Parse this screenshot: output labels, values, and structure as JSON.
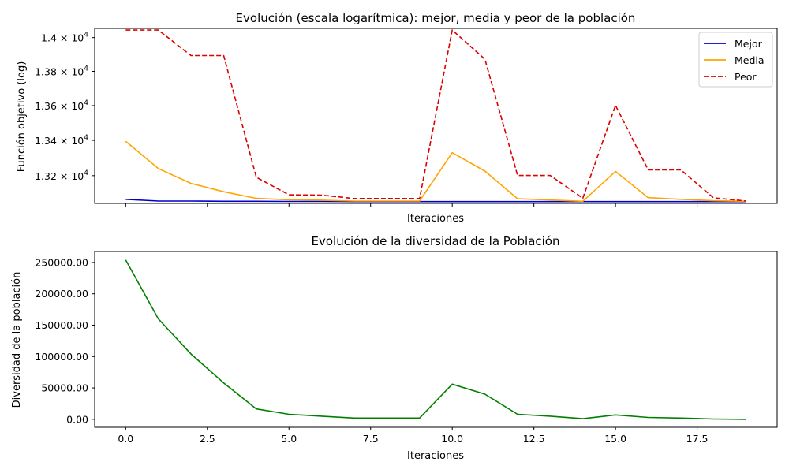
{
  "chart_data": [
    {
      "type": "line",
      "title": "Evolución (escala logarítmica): mejor, media y peor de la población",
      "xlabel": "Iteraciones",
      "ylabel": "Función objetivo (log)",
      "yscale": "log",
      "grid": false,
      "legend": "top-right",
      "xlim": [
        -0.95,
        19.95
      ],
      "ylim": [
        13045,
        14055
      ],
      "yticks": [
        13200,
        13400,
        13600,
        13800,
        14000
      ],
      "ytick_labels": [
        {
          "mantissa": "1.32",
          "exp": "4"
        },
        {
          "mantissa": "1.34",
          "exp": "4"
        },
        {
          "mantissa": "1.36",
          "exp": "4"
        },
        {
          "mantissa": "1.38",
          "exp": "4"
        },
        {
          "mantissa": "1.4",
          "exp": "4"
        }
      ],
      "x": [
        0,
        1,
        2,
        3,
        4,
        5,
        6,
        7,
        8,
        9,
        10,
        11,
        12,
        13,
        14,
        15,
        16,
        17,
        18,
        19
      ],
      "series": [
        {
          "name": "Mejor",
          "color": "#0000cc",
          "dash": "solid",
          "values": [
            13068,
            13058,
            13058,
            13057,
            13057,
            13056,
            13056,
            13055,
            13055,
            13055,
            13055,
            13055,
            13055,
            13055,
            13055,
            13055,
            13055,
            13055,
            13055,
            13055
          ]
        },
        {
          "name": "Media",
          "color": "#ffa500",
          "dash": "solid",
          "values": [
            13395,
            13240,
            13157,
            13110,
            13073,
            13065,
            13063,
            13058,
            13058,
            13058,
            13330,
            13226,
            13071,
            13064,
            13057,
            13224,
            13077,
            13068,
            13060,
            13057
          ]
        },
        {
          "name": "Peor",
          "color": "#dd0000",
          "dash": "dashed",
          "values": [
            14045,
            14045,
            13893,
            13893,
            13191,
            13093,
            13091,
            13072,
            13072,
            13072,
            14045,
            13871,
            13201,
            13201,
            13074,
            13601,
            13233,
            13233,
            13076,
            13058
          ]
        }
      ]
    },
    {
      "type": "line",
      "title": "Evolución de la diversidad de la Población",
      "xlabel": "Iteraciones",
      "ylabel": "Diversidad de la población",
      "grid": false,
      "xlim": [
        -0.95,
        19.95
      ],
      "ylim": [
        -12730,
        267480
      ],
      "xticks": [
        0,
        2.5,
        5,
        7.5,
        10,
        12.5,
        15,
        17.5
      ],
      "xtick_labels": [
        "0.0",
        "2.5",
        "5.0",
        "7.5",
        "10.0",
        "12.5",
        "15.0",
        "17.5"
      ],
      "yticks": [
        0,
        50000,
        100000,
        150000,
        200000,
        250000
      ],
      "ytick_labels": [
        "0.00",
        "50000.00",
        "100000.00",
        "150000.00",
        "200000.00",
        "250000.00"
      ],
      "x": [
        0,
        1,
        2,
        3,
        4,
        5,
        6,
        7,
        8,
        9,
        10,
        11,
        12,
        13,
        14,
        15,
        16,
        17,
        18,
        19
      ],
      "series": [
        {
          "color": "#008000",
          "dash": "solid",
          "values": [
            254000,
            160000,
            104000,
            58000,
            16500,
            8000,
            5000,
            2000,
            2000,
            2000,
            56000,
            40000,
            8000,
            5000,
            1000,
            7000,
            3000,
            2000,
            500,
            0
          ]
        }
      ]
    }
  ]
}
